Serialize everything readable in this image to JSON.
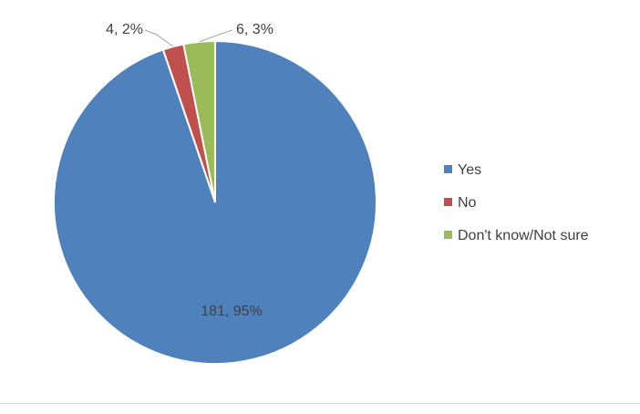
{
  "chart_data": {
    "type": "pie",
    "title": "",
    "series": [
      {
        "name": "Yes",
        "value": 181,
        "percent": 95,
        "color": "#4F81BD",
        "label": "181, 95%"
      },
      {
        "name": "No",
        "value": 4,
        "percent": 2,
        "color": "#C0504D",
        "label": "4, 2%"
      },
      {
        "name": "Don't know/Not sure",
        "value": 6,
        "percent": 3,
        "color": "#9BBB59",
        "label": "6, 3%"
      }
    ],
    "legend": {
      "placement": "right",
      "entries": [
        "Yes",
        "No",
        "Don't know/Not sure"
      ]
    },
    "start_angle": "top, clockwise order: No, Don't know/Not sure, Yes"
  }
}
